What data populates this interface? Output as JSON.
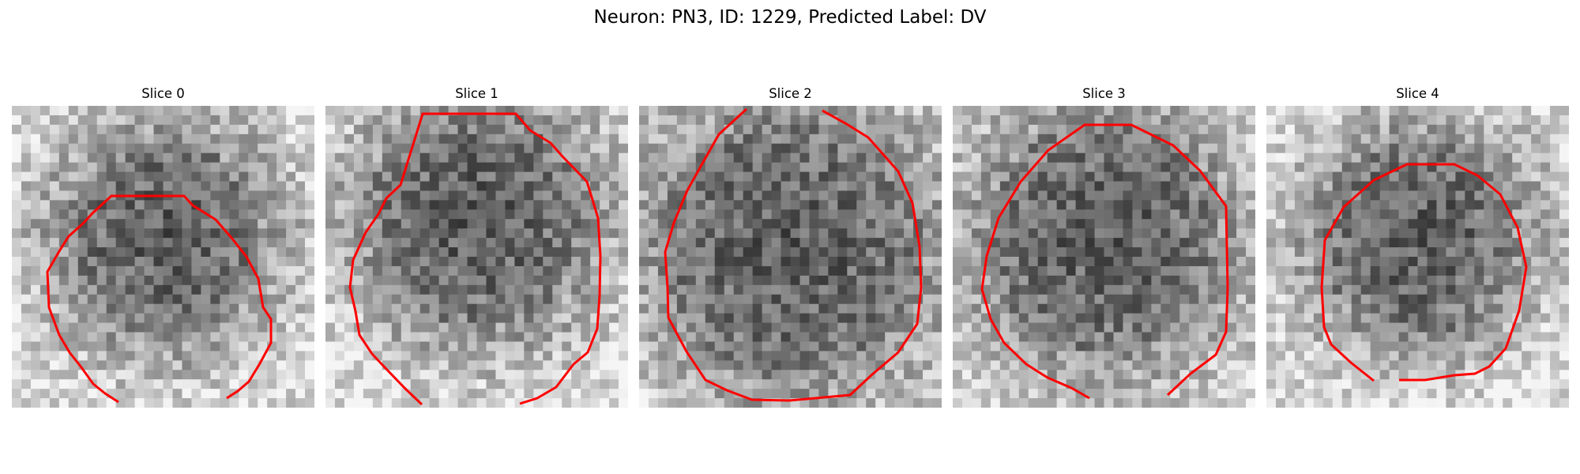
{
  "figure": {
    "title": "Neuron: PN3, ID: 1229, Predicted Label: DV"
  },
  "panels": [
    {
      "title": "Slice 0"
    },
    {
      "title": "Slice 1"
    },
    {
      "title": "Slice 2"
    },
    {
      "title": "Slice 3"
    },
    {
      "title": "Slice 4"
    }
  ],
  "colors": {
    "contour": "#ff0000",
    "colormap": "gray"
  }
}
